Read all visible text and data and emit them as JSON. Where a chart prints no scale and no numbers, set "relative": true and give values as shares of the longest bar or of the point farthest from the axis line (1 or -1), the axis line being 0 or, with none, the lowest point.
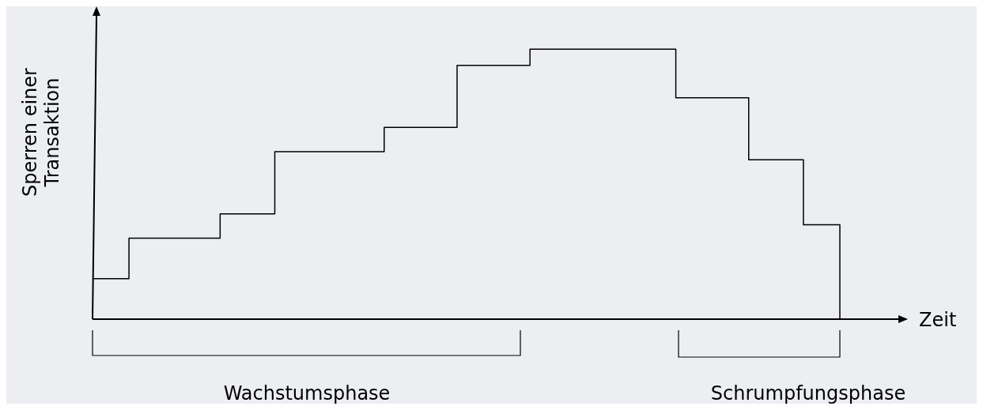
{
  "chart_data": {
    "type": "step",
    "relative": true,
    "xlabel": "Zeit",
    "ylabel": "Sperren einer Transaktion",
    "categories": [
      null,
      null,
      null,
      null,
      null,
      null,
      null,
      null,
      null,
      null,
      null,
      null,
      null,
      null,
      null,
      null,
      null,
      null,
      null,
      null,
      null,
      null,
      null,
      null,
      null,
      null,
      null,
      null,
      null,
      null,
      null,
      null,
      null,
      null,
      null,
      null,
      null,
      null,
      null,
      null,
      null,
      null
    ],
    "series": [
      {
        "color": "#000000",
        "values": [
          0.15,
          0.15,
          0.3,
          0.3,
          0.3,
          0.3,
          0.3,
          0.39,
          0.39,
          0.39,
          0.62,
          0.62,
          0.62,
          0.62,
          0.62,
          0.62,
          0.71,
          0.71,
          0.71,
          0.71,
          0.94,
          0.94,
          0.94,
          0.94,
          1,
          1,
          1,
          1,
          1,
          1,
          1,
          1,
          0.82,
          0.82,
          0.82,
          0.82,
          0.59,
          0.59,
          0.59,
          0.35,
          0.35,
          0
        ]
      }
    ],
    "marker": "none",
    "line_style": "solid",
    "grid": false,
    "annotations": [
      "Wachstumsphase",
      "Schrumpfungsphase"
    ]
  }
}
